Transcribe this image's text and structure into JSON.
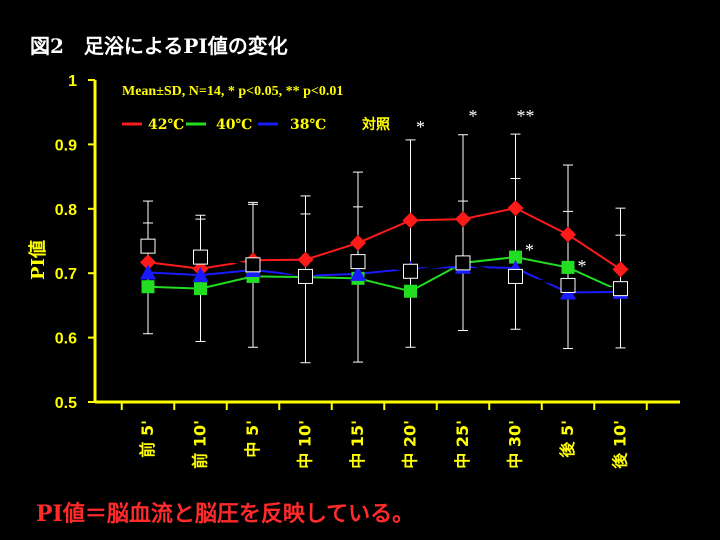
{
  "title": "図2　足浴によるPI値の変化",
  "footer": "PI値＝脳血流と脳圧を反映している。",
  "chart_data": {
    "type": "line",
    "ylabel": "PI値",
    "ylim": [
      0.5,
      1.0
    ],
    "yticks": [
      "0.5",
      "0.6",
      "0.7",
      "0.8",
      "0.9",
      "1"
    ],
    "categories": [
      "前 5'",
      "前 10'",
      "中 5'",
      "中 10'",
      "中 15'",
      "中 20'",
      "中 25'",
      "中 30'",
      "後 5'",
      "後 10'"
    ],
    "stats_note": "Mean±SD, N=14, * p<0.05, ** p<0.01",
    "series": [
      {
        "name": "42℃",
        "color": "#ff1a1a",
        "marker": "diamond",
        "values": [
          0.717,
          0.707,
          0.72,
          0.721,
          0.747,
          0.782,
          0.784,
          0.801,
          0.76,
          0.706
        ]
      },
      {
        "name": "40℃",
        "color": "#22dd22",
        "marker": "square",
        "values": [
          0.679,
          0.676,
          0.695,
          0.694,
          0.692,
          0.672,
          0.716,
          0.725,
          0.709,
          0.672
        ]
      },
      {
        "name": "38℃",
        "color": "#1a1aff",
        "marker": "triangle",
        "values": [
          0.701,
          0.697,
          0.705,
          0.696,
          0.699,
          0.707,
          0.71,
          0.708,
          0.67,
          0.671
        ]
      },
      {
        "name": "対照",
        "color": "#000000",
        "marker": "square",
        "values": [
          0.742,
          0.725,
          0.713,
          0.695,
          0.718,
          0.703,
          0.716,
          0.695,
          0.681,
          0.676
        ]
      }
    ],
    "error_bars": [
      {
        "category": "前 5'",
        "upper": 0.812,
        "lower": 0.606,
        "upper2": 0.778
      },
      {
        "category": "前 10'",
        "upper": 0.79,
        "lower": 0.594,
        "upper2": 0.784
      },
      {
        "category": "中 5'",
        "upper": 0.81,
        "lower": 0.585,
        "upper2": 0.807
      },
      {
        "category": "中 10'",
        "upper": 0.82,
        "lower": 0.561,
        "upper2": 0.792
      },
      {
        "category": "中 15'",
        "upper": 0.857,
        "lower": 0.562,
        "upper2": 0.803
      },
      {
        "category": "中 20'",
        "upper": 0.907,
        "lower": 0.585,
        "upper2": null
      },
      {
        "category": "中 25'",
        "upper": 0.915,
        "lower": 0.611,
        "upper2": 0.812
      },
      {
        "category": "中 30'",
        "upper": 0.916,
        "lower": 0.613,
        "upper2": 0.847
      },
      {
        "category": "後 5'",
        "upper": 0.868,
        "lower": 0.583,
        "upper2": 0.796
      },
      {
        "category": "後 10'",
        "upper": 0.801,
        "lower": 0.584,
        "upper2": 0.759
      }
    ],
    "significance": [
      {
        "category": "中 20'",
        "label": "*",
        "value": 0.93
      },
      {
        "category": "中 25'",
        "label": "*",
        "value": 0.947
      },
      {
        "category": "中 30'",
        "label": "**",
        "value": 0.947
      },
      {
        "category": "中 30'",
        "label": "*",
        "value": 0.739
      },
      {
        "category": "後 5'",
        "label": "*",
        "value": 0.714
      }
    ],
    "colors": {
      "axis": "#ffff00",
      "background": "#000000",
      "errorbar": "#ffffff"
    }
  }
}
